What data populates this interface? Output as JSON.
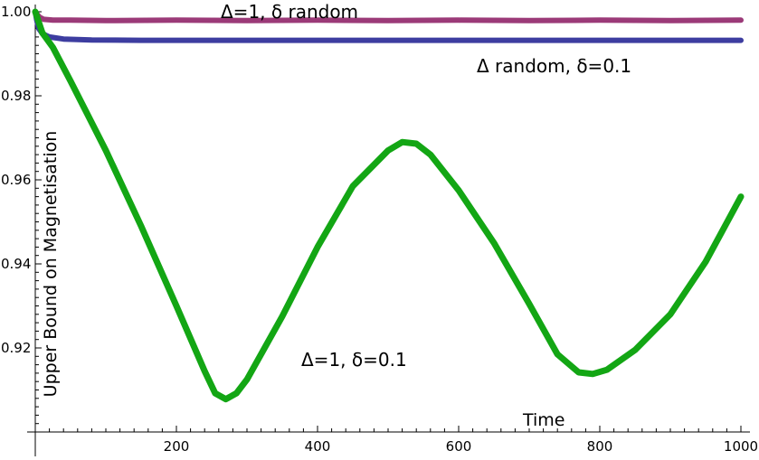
{
  "chart_data": {
    "type": "line",
    "xlabel": "Time",
    "ylabel": "Upper Bound on Magnetisation",
    "xlim": [
      0,
      1000
    ],
    "ylim": [
      0.9,
      1.0
    ],
    "x_major_ticks": [
      200,
      400,
      600,
      800,
      1000
    ],
    "y_major_ticks": [
      0.92,
      0.94,
      0.96,
      0.98,
      1.0
    ],
    "x_tick_labels": [
      "200",
      "400",
      "600",
      "800",
      "1000"
    ],
    "y_tick_labels": [
      "0.92",
      "0.94",
      "0.96",
      "0.98",
      "1.00"
    ],
    "series": [
      {
        "name": "Δ=1, δ random",
        "color": "#9b3a78",
        "x": [
          0,
          2,
          6,
          12,
          25,
          50,
          100,
          200,
          300,
          400,
          500,
          600,
          700,
          800,
          900,
          1000
        ],
        "y": [
          1.0,
          0.9995,
          0.9987,
          0.9982,
          0.998,
          0.998,
          0.9979,
          0.998,
          0.9979,
          0.998,
          0.9979,
          0.998,
          0.9979,
          0.998,
          0.9979,
          0.998
        ]
      },
      {
        "name": "Δ random, δ=0.1",
        "color": "#3d3da0",
        "x": [
          0,
          2,
          5,
          10,
          20,
          40,
          80,
          150,
          300,
          500,
          700,
          900,
          1000
        ],
        "y": [
          1.0,
          0.998,
          0.996,
          0.9948,
          0.994,
          0.9935,
          0.9933,
          0.9932,
          0.9932,
          0.9932,
          0.9932,
          0.9932,
          0.9932
        ]
      },
      {
        "name": "Δ=1, δ=0.1",
        "color": "#13a614",
        "x": [
          0,
          10,
          25,
          50,
          100,
          150,
          200,
          240,
          255,
          270,
          285,
          300,
          350,
          400,
          450,
          500,
          520,
          540,
          560,
          600,
          650,
          700,
          740,
          770,
          790,
          810,
          850,
          900,
          950,
          1000
        ],
        "y": [
          1.0,
          0.995,
          0.9915,
          0.9835,
          0.967,
          0.949,
          0.93,
          0.9145,
          0.9092,
          0.9078,
          0.9092,
          0.9125,
          0.9275,
          0.944,
          0.9585,
          0.967,
          0.969,
          0.9686,
          0.966,
          0.9575,
          0.945,
          0.9305,
          0.9185,
          0.9142,
          0.9138,
          0.9148,
          0.9195,
          0.928,
          0.9405,
          0.956
        ]
      }
    ],
    "annotations": [
      {
        "text": "Δ=1, δ random"
      },
      {
        "text": "Δ random, δ=0.1"
      },
      {
        "text": "Δ=1, δ=0.1"
      }
    ],
    "grid": false,
    "legend": "none"
  }
}
